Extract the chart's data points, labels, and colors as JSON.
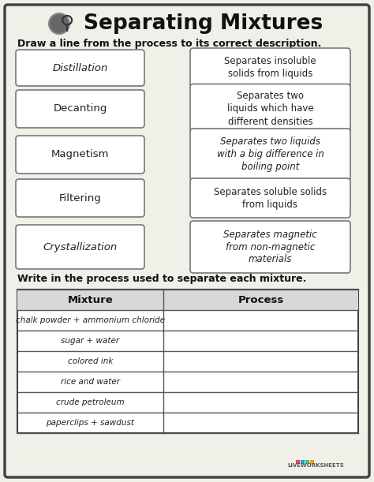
{
  "title": "Separating Mixtures",
  "instruction1": "Draw a line from the process to its correct description.",
  "instruction2": "Write in the process used to separate each mixture.",
  "bg_color": "#f0efe8",
  "border_color": "#555555",
  "box_color": "#ffffff",
  "processes": [
    "Distillation",
    "Decanting",
    "Magnetism",
    "Filtering",
    "Crystallization"
  ],
  "descriptions": [
    "Separates insoluble\nsolids from liquids",
    "Separates two\nliquids which have\ndifferent densities",
    "Separates two liquids\nwith a big difference in\nboiling point",
    "Separates soluble solids\nfrom liquids",
    "Separates magnetic\nfrom non-magnetic\nmaterials"
  ],
  "proc_italic": [
    true,
    false,
    false,
    false,
    true
  ],
  "desc_italic": [
    false,
    false,
    true,
    false,
    true
  ],
  "mixtures": [
    "chalk powder + ammonium chloride",
    "sugar + water",
    "colored ink",
    "rice and water",
    "crude petroleum",
    "paperclips + sawdust"
  ],
  "table_headers": [
    "Mixture",
    "Process"
  ],
  "title_fontsize": 19,
  "instr_fontsize": 9,
  "proc_fontsize": 9.5,
  "desc_fontsize": 8.5,
  "header_fontsize": 9.5,
  "mix_fontsize": 7.5
}
